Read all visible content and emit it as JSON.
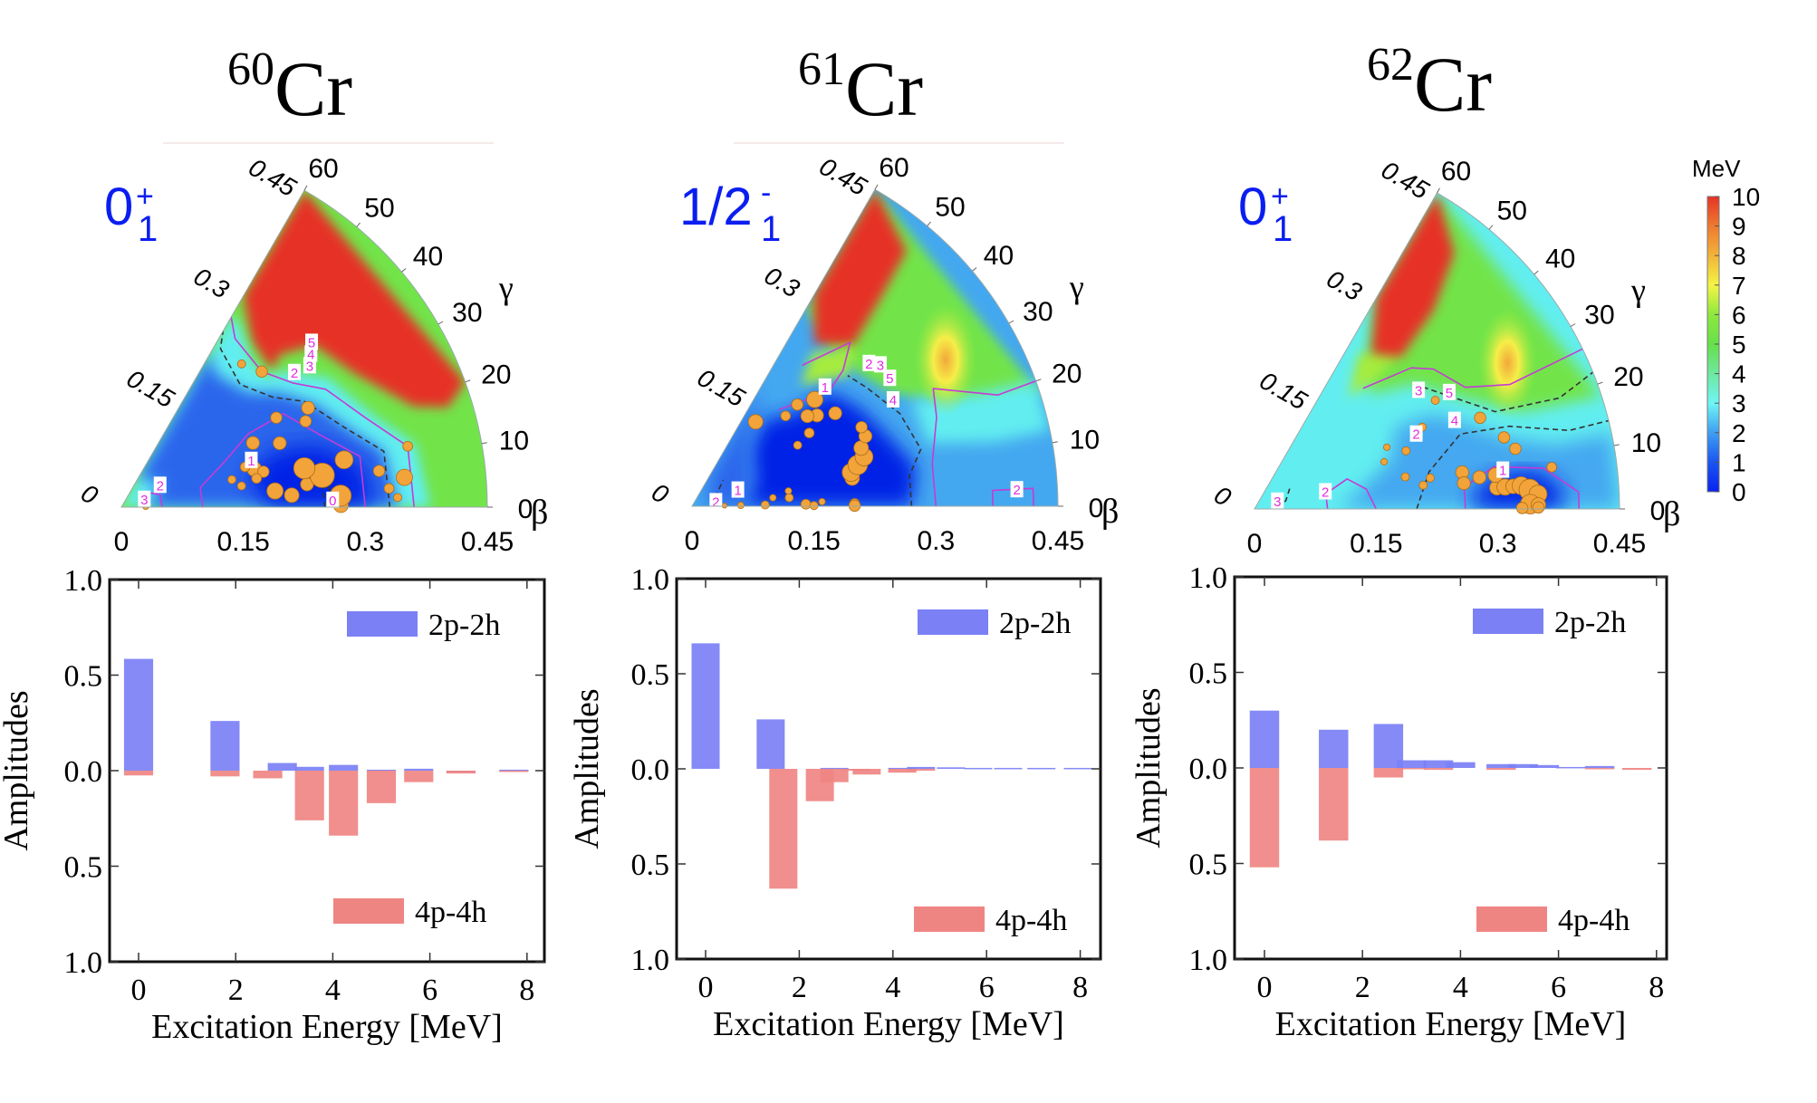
{
  "chart_data": [
    {
      "type": "heatmap",
      "subtype": "polar-sector-potential-energy-surface",
      "title": {
        "mass": "60",
        "element": "Cr"
      },
      "state_label": {
        "main": "0",
        "sup": "+",
        "sub": "1"
      },
      "beta_axis": {
        "label": "β",
        "ticks": [
          "0",
          "0.15",
          "0.3",
          "0.45"
        ],
        "range": [
          0,
          0.45
        ]
      },
      "beta_radial_ticks": [
        "0",
        "0.15",
        "0.3",
        "0.45"
      ],
      "gamma_axis": {
        "label": "γ",
        "ticks": [
          "0",
          "10",
          "20",
          "30",
          "40",
          "50",
          "60"
        ],
        "range": [
          0,
          60
        ]
      },
      "contour_labels": [
        "0",
        "1",
        "2",
        "3",
        "4",
        "5",
        "2",
        "3"
      ],
      "minimum": {
        "beta": 0.28,
        "gamma": 0
      },
      "description": "Energy minimum near beta 0.25-0.3, gamma 0; high energy (>=10 MeV) region for gamma > 20 at large beta"
    },
    {
      "type": "heatmap",
      "subtype": "polar-sector-potential-energy-surface",
      "title": {
        "mass": "61",
        "element": "Cr"
      },
      "state_label": {
        "main": "1/2",
        "sup": "-",
        "sub": "1"
      },
      "beta_axis": {
        "label": "β",
        "ticks": [
          "0",
          "0.15",
          "0.3",
          "0.45"
        ],
        "range": [
          0,
          0.45
        ]
      },
      "beta_radial_ticks": [
        "0",
        "0.15",
        "0.3",
        "0.45"
      ],
      "gamma_axis": {
        "label": "γ",
        "ticks": [
          "0",
          "10",
          "20",
          "30",
          "40",
          "50",
          "60"
        ],
        "range": [
          0,
          60
        ]
      },
      "contour_labels": [
        "1",
        "2",
        "3",
        "5",
        "4",
        "1",
        "2",
        "2"
      ],
      "minimum": {
        "beta": 0.2,
        "gamma": 10
      },
      "description": "Broad low-energy basin at beta 0.1-0.3 extending to triaxial gamma; local maximum ~8 MeV near beta 0.35, gamma 30"
    },
    {
      "type": "heatmap",
      "subtype": "polar-sector-potential-energy-surface",
      "title": {
        "mass": "62",
        "element": "Cr"
      },
      "state_label": {
        "main": "0",
        "sup": "+",
        "sub": "1"
      },
      "beta_axis": {
        "label": "β",
        "ticks": [
          "0",
          "0.15",
          "0.3",
          "0.45"
        ],
        "range": [
          0,
          0.45
        ]
      },
      "beta_radial_ticks": [
        "0",
        "0.15",
        "0.3",
        "0.45"
      ],
      "gamma_axis": {
        "label": "γ",
        "ticks": [
          "0",
          "10",
          "20",
          "30",
          "40",
          "50",
          "60"
        ],
        "range": [
          0,
          60
        ]
      },
      "contour_labels": [
        "3",
        "5",
        "2",
        "4",
        "1",
        "2",
        "3"
      ],
      "minimum": {
        "beta": 0.33,
        "gamma": 0
      },
      "description": "Prolate minimum near beta 0.33, gamma 0; local maximum ~8 MeV near beta 0.35, gamma 30",
      "colorbar": {
        "label": "MeV",
        "ticks": [
          "0",
          "1",
          "2",
          "3",
          "4",
          "5",
          "6",
          "7",
          "8",
          "9",
          "10"
        ],
        "range": [
          0,
          10
        ]
      }
    },
    {
      "type": "bar",
      "nucleus": "60Cr",
      "xlabel": "Excitation Energy [MeV]",
      "ylabel": "Amplitudes",
      "xlim": [
        -0.6,
        8.4
      ],
      "ylim": [
        -1.0,
        1.0
      ],
      "xticks": [
        "0",
        "2",
        "4",
        "6",
        "8"
      ],
      "yticks": [
        "1.0",
        "0.5",
        "0.0",
        "0.5",
        "1.0"
      ],
      "legend": [
        {
          "name": "2p-2h",
          "color": "#7b80f5",
          "placement": "top-right"
        },
        {
          "name": "4p-4h",
          "color": "#ef8583",
          "placement": "bottom-right"
        }
      ],
      "series": [
        {
          "name": "2p-2h",
          "x": [
            0.0,
            1.78,
            2.96,
            3.52,
            4.22,
            5.0,
            5.77,
            6.64,
            7.73
          ],
          "values": [
            0.585,
            0.26,
            0.04,
            0.02,
            0.03,
            0.005,
            0.01,
            0.0,
            0.005
          ]
        },
        {
          "name": "4p-4h",
          "x": [
            0.0,
            1.78,
            2.66,
            3.52,
            4.22,
            5.0,
            5.77,
            6.64,
            7.73
          ],
          "values": [
            -0.025,
            -0.03,
            -0.04,
            -0.26,
            -0.34,
            -0.17,
            -0.06,
            -0.015,
            -0.005
          ]
        }
      ]
    },
    {
      "type": "bar",
      "nucleus": "61Cr",
      "xlabel": "Excitation Energy [MeV]",
      "ylabel": "Amplitudes",
      "xlim": [
        -0.6,
        8.4
      ],
      "ylim": [
        -1.0,
        1.0
      ],
      "xticks": [
        "0",
        "2",
        "4",
        "6",
        "8"
      ],
      "yticks": [
        "1.0",
        "0.5",
        "0.0",
        "0.5",
        "1.0"
      ],
      "legend": [
        {
          "name": "2p-2h",
          "color": "#7b80f5",
          "placement": "top-right"
        },
        {
          "name": "4p-4h",
          "color": "#ef8583",
          "placement": "bottom-right"
        }
      ],
      "series": [
        {
          "name": "2p-2h",
          "x": [
            0.0,
            1.39,
            2.75,
            4.2,
            4.6,
            5.24,
            5.82,
            6.46,
            7.17,
            7.95
          ],
          "values": [
            0.66,
            0.26,
            0.005,
            0.005,
            0.01,
            0.008,
            0.005,
            0.005,
            0.005,
            0.005
          ]
        },
        {
          "name": "4p-4h",
          "x": [
            1.66,
            2.44,
            2.75,
            3.21,
            3.44,
            4.2,
            4.6
          ],
          "values": [
            -0.63,
            -0.17,
            -0.07,
            -0.01,
            -0.03,
            -0.02,
            -0.01
          ]
        }
      ]
    },
    {
      "type": "bar",
      "nucleus": "62Cr",
      "xlabel": "Excitation Energy [MeV]",
      "ylabel": "Amplitudes",
      "xlim": [
        -0.6,
        8.4
      ],
      "ylim": [
        -1.0,
        1.0
      ],
      "xticks": [
        "0",
        "2",
        "4",
        "6",
        "8"
      ],
      "yticks": [
        "1.0",
        "0.5",
        "0.0",
        "0.5",
        "1.0"
      ],
      "legend": [
        {
          "name": "2p-2h",
          "color": "#7b80f5",
          "placement": "top-right"
        },
        {
          "name": "4p-4h",
          "color": "#ef8583",
          "placement": "bottom-right"
        }
      ],
      "series": [
        {
          "name": "2p-2h",
          "x": [
            0.0,
            1.41,
            2.53,
            3.0,
            3.55,
            4.0,
            4.83,
            5.28,
            5.71,
            6.25,
            6.84
          ],
          "values": [
            0.3,
            0.2,
            0.23,
            0.04,
            0.04,
            0.03,
            0.02,
            0.02,
            0.015,
            0.005,
            0.01
          ]
        },
        {
          "name": "4p-4h",
          "x": [
            0.0,
            1.41,
            2.53,
            3.0,
            3.55,
            4.83,
            6.84,
            7.6
          ],
          "values": [
            -0.52,
            -0.38,
            -0.05,
            -0.005,
            -0.01,
            -0.01,
            -0.005,
            -0.01
          ]
        }
      ]
    }
  ]
}
